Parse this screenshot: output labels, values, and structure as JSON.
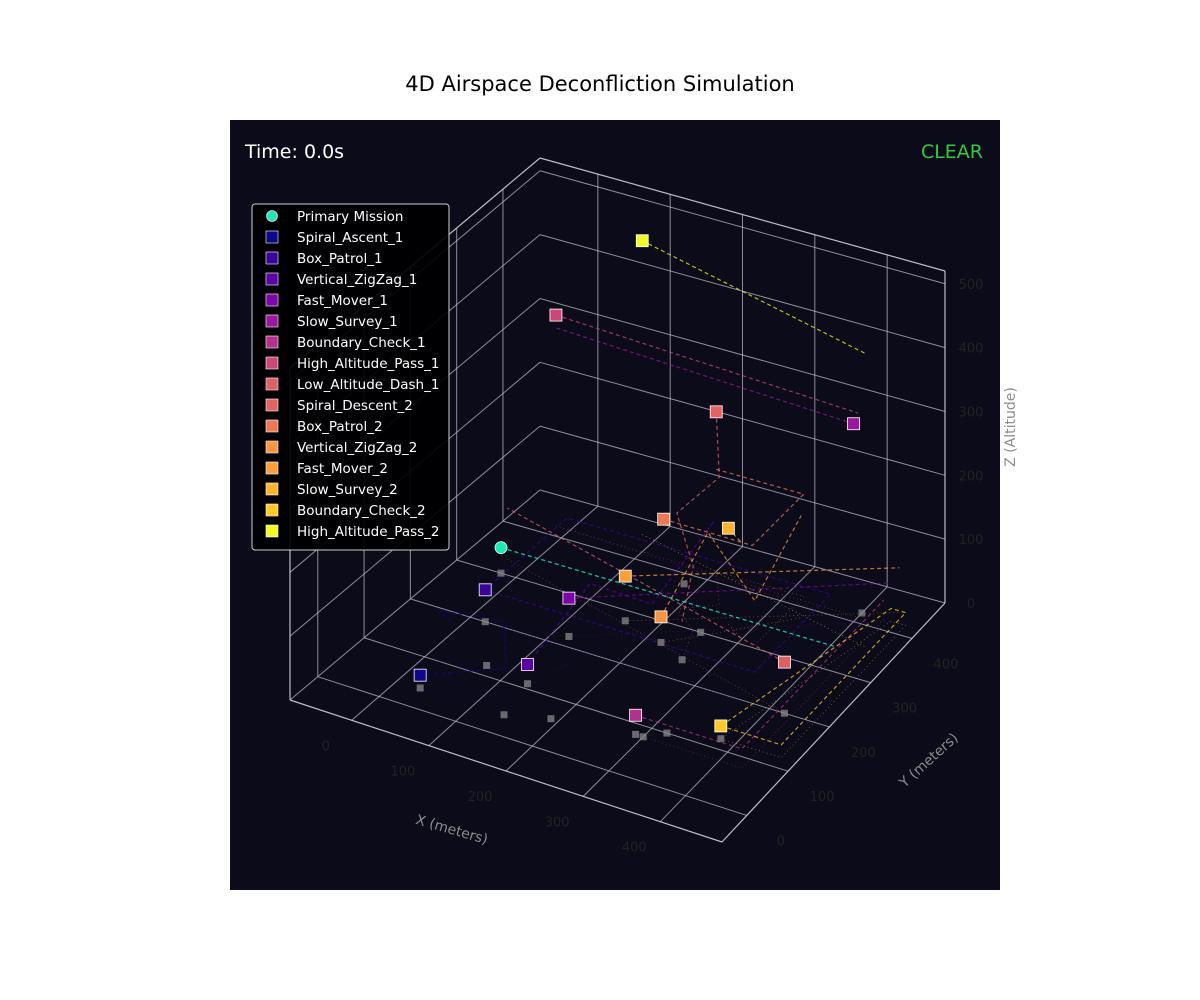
{
  "chart_data": {
    "type": "scatter",
    "title": "4D Airspace Deconfliction Simulation",
    "projection": "3d",
    "time_label": "Time: 0.0s",
    "status_label": "CLEAR",
    "xlabel": "X (meters)",
    "ylabel": "Y (meters)",
    "zlabel": "Z (Altitude)",
    "xlim": [
      -80,
      480
    ],
    "ylim": [
      -60,
      480
    ],
    "zlim": [
      0,
      520
    ],
    "x_ticks": [
      "0",
      "100",
      "200",
      "300",
      "400"
    ],
    "y_ticks": [
      "0",
      "100",
      "200",
      "300",
      "400"
    ],
    "z_ticks": [
      "0",
      "100",
      "200",
      "300",
      "400",
      "500"
    ],
    "grid": true,
    "legend_position": "upper-left",
    "background_color": "#0b0b1a",
    "primary_color": "#1de9b6",
    "status_color": "#2ecc40",
    "legend": [
      {
        "label": "Primary Mission",
        "marker": "circle",
        "color": "#1de9b6"
      },
      {
        "label": "Spiral_Ascent_1",
        "marker": "square",
        "color": "#0d0887"
      },
      {
        "label": "Box_Patrol_1",
        "marker": "square",
        "color": "#3a049a"
      },
      {
        "label": "Vertical_ZigZag_1",
        "marker": "square",
        "color": "#5c01a6"
      },
      {
        "label": "Fast_Mover_1",
        "marker": "square",
        "color": "#7e03a8"
      },
      {
        "label": "Slow_Survey_1",
        "marker": "square",
        "color": "#9c179e"
      },
      {
        "label": "Boundary_Check_1",
        "marker": "square",
        "color": "#b52f8c"
      },
      {
        "label": "High_Altitude_Pass_1",
        "marker": "square",
        "color": "#cc4778"
      },
      {
        "label": "Low_Altitude_Dash_1",
        "marker": "square",
        "color": "#de5f65"
      },
      {
        "label": "Spiral_Descent_2",
        "marker": "square",
        "color": "#e16462"
      },
      {
        "label": "Box_Patrol_2",
        "marker": "square",
        "color": "#ed7953"
      },
      {
        "label": "Vertical_ZigZag_2",
        "marker": "square",
        "color": "#f89540"
      },
      {
        "label": "Fast_Mover_2",
        "marker": "square",
        "color": "#fb9f3a"
      },
      {
        "label": "Slow_Survey_2",
        "marker": "square",
        "color": "#fdb42f"
      },
      {
        "label": "Boundary_Check_2",
        "marker": "square",
        "color": "#fdca26"
      },
      {
        "label": "High_Altitude_Pass_2",
        "marker": "square",
        "color": "#f0f921"
      }
    ],
    "primary": {
      "position": [
        -20,
        300,
        40
      ],
      "path": [
        [
          -20,
          300,
          40
        ],
        [
          430,
          300,
          40
        ]
      ]
    },
    "drones": [
      {
        "name": "Spiral_Ascent_1",
        "position": [
          30,
          40,
          20
        ],
        "path": [
          [
            30,
            40,
            20
          ],
          [
            120,
            80,
            40
          ],
          [
            80,
            140,
            60
          ],
          [
            20,
            100,
            80
          ],
          [
            60,
            60,
            100
          ]
        ]
      },
      {
        "name": "Box_Patrol_1",
        "position": [
          20,
          200,
          50
        ],
        "path": [
          [
            20,
            200,
            50
          ],
          [
            380,
            200,
            50
          ],
          [
            380,
            380,
            50
          ],
          [
            20,
            380,
            50
          ],
          [
            20,
            200,
            50
          ]
        ]
      },
      {
        "name": "Vertical_ZigZag_1",
        "position": [
          130,
          110,
          30
        ],
        "path": [
          [
            130,
            110,
            30
          ],
          [
            160,
            200,
            110
          ],
          [
            190,
            290,
            30
          ],
          [
            220,
            380,
            110
          ]
        ]
      },
      {
        "name": "Fast_Mover_1",
        "position": [
          120,
          220,
          60
        ],
        "path": [
          [
            120,
            220,
            60
          ],
          [
            440,
            420,
            60
          ]
        ]
      },
      {
        "name": "Slow_Survey_1",
        "position": [
          400,
          400,
          310
        ],
        "path": [
          [
            400,
            400,
            310
          ],
          [
            -20,
            420,
            310
          ]
        ]
      },
      {
        "name": "Boundary_Check_1",
        "position": [
          290,
          80,
          30
        ],
        "path": [
          [
            290,
            80,
            30
          ],
          [
            430,
            80,
            30
          ],
          [
            430,
            420,
            30
          ]
        ]
      },
      {
        "name": "High_Altitude_Pass_1",
        "position": [
          -20,
          420,
          330
        ],
        "path": [
          [
            -20,
            420,
            330
          ],
          [
            400,
            410,
            320
          ]
        ]
      },
      {
        "name": "Low_Altitude_Dash_1",
        "position": [
          420,
          200,
          80
        ],
        "path": [
          [
            420,
            200,
            80
          ],
          [
            -30,
            330,
            80
          ]
        ]
      },
      {
        "name": "Spiral_Descent_2",
        "position": [
          200,
          420,
          250
        ],
        "path": [
          [
            200,
            420,
            250
          ],
          [
            240,
            360,
            200
          ],
          [
            200,
            330,
            150
          ],
          [
            240,
            300,
            100
          ],
          [
            260,
            240,
            60
          ]
        ]
      },
      {
        "name": "Box_Patrol_2",
        "position": [
          200,
          300,
          160
        ],
        "path": [
          [
            200,
            300,
            160
          ],
          [
            320,
            300,
            160
          ],
          [
            320,
            420,
            160
          ],
          [
            200,
            420,
            160
          ]
        ]
      },
      {
        "name": "Vertical_ZigZag_2",
        "position": [
          220,
          260,
          40
        ],
        "path": [
          [
            220,
            260,
            40
          ],
          [
            260,
            300,
            160
          ],
          [
            300,
            340,
            40
          ],
          [
            340,
            380,
            160
          ]
        ]
      },
      {
        "name": "Fast_Mover_2",
        "position": [
          160,
          280,
          70
        ],
        "path": [
          [
            160,
            280,
            70
          ],
          [
            440,
            440,
            70
          ]
        ]
      },
      {
        "name": "Slow_Survey_2",
        "position": [
          270,
          330,
          150
        ],
        "path": [
          [
            270,
            330,
            150
          ],
          [
            300,
            310,
            150
          ]
        ]
      },
      {
        "name": "Boundary_Check_2",
        "position": [
          380,
          120,
          20
        ],
        "path": [
          [
            380,
            120,
            20
          ],
          [
            460,
            120,
            20
          ],
          [
            460,
            420,
            20
          ],
          [
            440,
            420,
            20
          ],
          [
            380,
            120,
            20
          ]
        ]
      },
      {
        "name": "High_Altitude_Pass_2",
        "position": [
          80,
          450,
          460
        ],
        "path": [
          [
            80,
            450,
            460
          ],
          [
            440,
            360,
            460
          ]
        ]
      }
    ],
    "ground_shadows": [
      [
        -20,
        300
      ],
      [
        30,
        40
      ],
      [
        20,
        200
      ],
      [
        130,
        110
      ],
      [
        120,
        220
      ],
      [
        290,
        80
      ],
      [
        420,
        200
      ],
      [
        160,
        280
      ],
      [
        220,
        260
      ],
      [
        250,
        300
      ],
      [
        260,
        240
      ],
      [
        380,
        120
      ],
      [
        300,
        80
      ],
      [
        320,
        100
      ],
      [
        140,
        40
      ],
      [
        70,
        120
      ],
      [
        400,
        420
      ],
      [
        180,
        380
      ],
      [
        190,
        60
      ]
    ]
  }
}
